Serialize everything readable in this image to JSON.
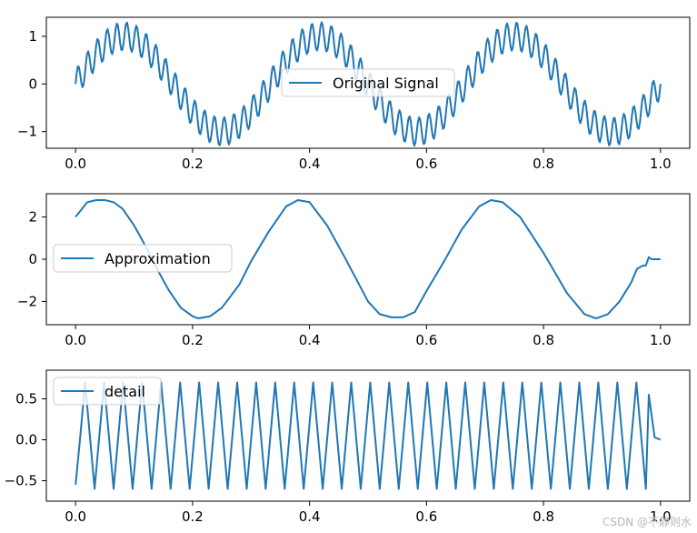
{
  "figure": {
    "watermark": "CSDN @不静则水"
  },
  "line_color": "#1f77b4",
  "chart_data": [
    {
      "type": "line",
      "title": "",
      "legend": {
        "label": "Original Signal",
        "placement": "center"
      },
      "xlim": [
        -0.05,
        1.05
      ],
      "ylim": [
        -1.35,
        1.4
      ],
      "xticks": [
        0.0,
        0.2,
        0.4,
        0.6,
        0.8,
        1.0
      ],
      "xtick_labels": [
        "0.0",
        "0.2",
        "0.4",
        "0.6",
        "0.8",
        "1.0"
      ],
      "yticks": [
        1,
        0,
        -1
      ],
      "ytick_labels": [
        "1",
        "0",
        "−1"
      ],
      "series": [
        {
          "name": "Original Signal",
          "formula": "sin(2*pi*3*t) + 0.3*sin(2*pi*60*t)",
          "t_range": [
            0,
            1
          ],
          "samples": 512
        }
      ]
    },
    {
      "type": "line",
      "title": "",
      "legend": {
        "label": "Approximation",
        "placement": "center-left"
      },
      "xlim": [
        -0.05,
        1.05
      ],
      "ylim": [
        -3.1,
        3.1
      ],
      "xticks": [
        0.0,
        0.2,
        0.4,
        0.6,
        0.8,
        1.0
      ],
      "xtick_labels": [
        "0.0",
        "0.2",
        "0.4",
        "0.6",
        "0.8",
        "1.0"
      ],
      "yticks": [
        2,
        0,
        -2
      ],
      "ytick_labels": [
        "2",
        "0",
        "−2"
      ],
      "series": [
        {
          "name": "Approximation",
          "x": [
            0.0,
            0.02,
            0.035,
            0.05,
            0.065,
            0.08,
            0.1,
            0.12,
            0.14,
            0.16,
            0.18,
            0.2,
            0.21,
            0.23,
            0.25,
            0.28,
            0.3,
            0.33,
            0.36,
            0.38,
            0.4,
            0.43,
            0.46,
            0.5,
            0.52,
            0.54,
            0.56,
            0.58,
            0.6,
            0.63,
            0.66,
            0.69,
            0.71,
            0.73,
            0.76,
            0.8,
            0.84,
            0.87,
            0.89,
            0.91,
            0.93,
            0.95,
            0.96,
            0.97,
            0.975,
            0.98,
            0.985,
            0.99,
            1.0
          ],
          "values": [
            2.0,
            2.7,
            2.8,
            2.8,
            2.7,
            2.4,
            1.6,
            0.6,
            -0.5,
            -1.5,
            -2.3,
            -2.7,
            -2.8,
            -2.7,
            -2.3,
            -1.2,
            -0.1,
            1.3,
            2.5,
            2.8,
            2.7,
            1.6,
            0.1,
            -2.0,
            -2.6,
            -2.75,
            -2.75,
            -2.5,
            -1.5,
            -0.1,
            1.4,
            2.5,
            2.8,
            2.7,
            2.0,
            0.3,
            -1.6,
            -2.6,
            -2.8,
            -2.6,
            -2.0,
            -1.1,
            -0.45,
            -0.3,
            -0.3,
            0.1,
            0.0,
            0.0,
            0.0
          ]
        }
      ]
    },
    {
      "type": "line",
      "title": "",
      "legend": {
        "label": "detail",
        "placement": "upper-left"
      },
      "xlim": [
        -0.05,
        1.05
      ],
      "ylim": [
        -0.75,
        0.85
      ],
      "xticks": [
        0.0,
        0.2,
        0.4,
        0.6,
        0.8,
        1.0
      ],
      "xtick_labels": [
        "0.0",
        "0.2",
        "0.4",
        "0.6",
        "0.8",
        "1.0"
      ],
      "yticks": [
        0.5,
        0.0,
        -0.5
      ],
      "ytick_labels": [
        "0.5",
        "0.0",
        "−0.5"
      ],
      "series": [
        {
          "name": "detail",
          "oscillation": {
            "amplitude": 0.65,
            "offset": 0.05,
            "start_value": -0.55,
            "cycles": 30,
            "points_per_cycle": 4,
            "t_range": [
              0,
              0.975
            ]
          },
          "tail_x": [
            0.98,
            0.99,
            1.0
          ],
          "tail_values": [
            0.55,
            0.03,
            0.0
          ]
        }
      ]
    }
  ]
}
